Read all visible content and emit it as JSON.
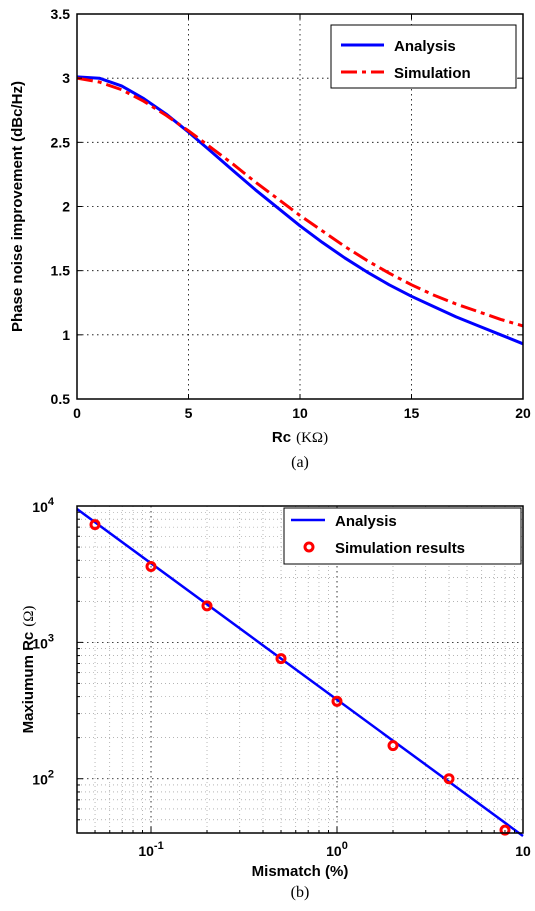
{
  "chart_data": [
    {
      "type": "line",
      "caption": "(a)",
      "xlabel_main": "Rc",
      "xlabel_unit": "(KΩ)",
      "ylabel": "Phase noise improvement (dBc/Hz)",
      "xlim": [
        0,
        20
      ],
      "ylim": [
        0.5,
        3.5
      ],
      "xticks": [
        0,
        5,
        10,
        15,
        20
      ],
      "yticks": [
        0.5,
        1,
        1.5,
        2,
        2.5,
        3,
        3.5
      ],
      "grid": true,
      "legend_position": "top-right",
      "colors": {
        "analysis": "#0000ff",
        "simulation": "#ff0000"
      },
      "series": [
        {
          "name": "Analysis",
          "style": "solid",
          "x": [
            0,
            1,
            2,
            3,
            4,
            5,
            6,
            7,
            8,
            9,
            10,
            11,
            12,
            13,
            14,
            15,
            16,
            17,
            18,
            19,
            20
          ],
          "y": [
            3.01,
            3.0,
            2.94,
            2.84,
            2.72,
            2.58,
            2.43,
            2.28,
            2.13,
            1.99,
            1.85,
            1.72,
            1.6,
            1.49,
            1.39,
            1.3,
            1.22,
            1.14,
            1.07,
            1.0,
            0.93
          ]
        },
        {
          "name": "Simulation",
          "style": "dashdot",
          "x": [
            0,
            1,
            2,
            3,
            4,
            5,
            6,
            7,
            8,
            9,
            10,
            11,
            12,
            13,
            14,
            15,
            16,
            17,
            18,
            19,
            20
          ],
          "y": [
            3.0,
            2.97,
            2.91,
            2.82,
            2.71,
            2.59,
            2.46,
            2.33,
            2.19,
            2.06,
            1.93,
            1.81,
            1.69,
            1.58,
            1.48,
            1.39,
            1.31,
            1.24,
            1.18,
            1.12,
            1.07
          ]
        }
      ]
    },
    {
      "type": "line",
      "caption": "(b)",
      "xlabel": "Mismatch (%)",
      "ylabel_main": "Maxiumum Rc",
      "ylabel_unit": "(Ω)",
      "xscale": "log",
      "yscale": "log",
      "xlim": [
        0.04,
        10
      ],
      "ylim": [
        40,
        10000
      ],
      "xticks": [
        {
          "value": 0.1,
          "base": "10",
          "exp": "-1"
        },
        {
          "value": 1,
          "base": "10",
          "exp": "0"
        },
        {
          "value": 10,
          "base": "10",
          "exp": ""
        }
      ],
      "yticks": [
        {
          "value": 100,
          "base": "10",
          "exp": "2"
        },
        {
          "value": 1000,
          "base": "10",
          "exp": "3"
        },
        {
          "value": 10000,
          "base": "10",
          "exp": "4"
        }
      ],
      "grid": true,
      "legend_position": "top-right",
      "colors": {
        "analysis": "#0000ff",
        "simulation": "#ff0000"
      },
      "series": [
        {
          "name": "Analysis",
          "style": "solid",
          "x": [
            0.04,
            10
          ],
          "y": [
            9500,
            38
          ]
        },
        {
          "name": "Simulation results",
          "style": "markers",
          "x": [
            0.05,
            0.1,
            0.2,
            0.5,
            1,
            2,
            4,
            8
          ],
          "y": [
            7300,
            3600,
            1850,
            760,
            370,
            175,
            100,
            42
          ]
        }
      ]
    }
  ]
}
